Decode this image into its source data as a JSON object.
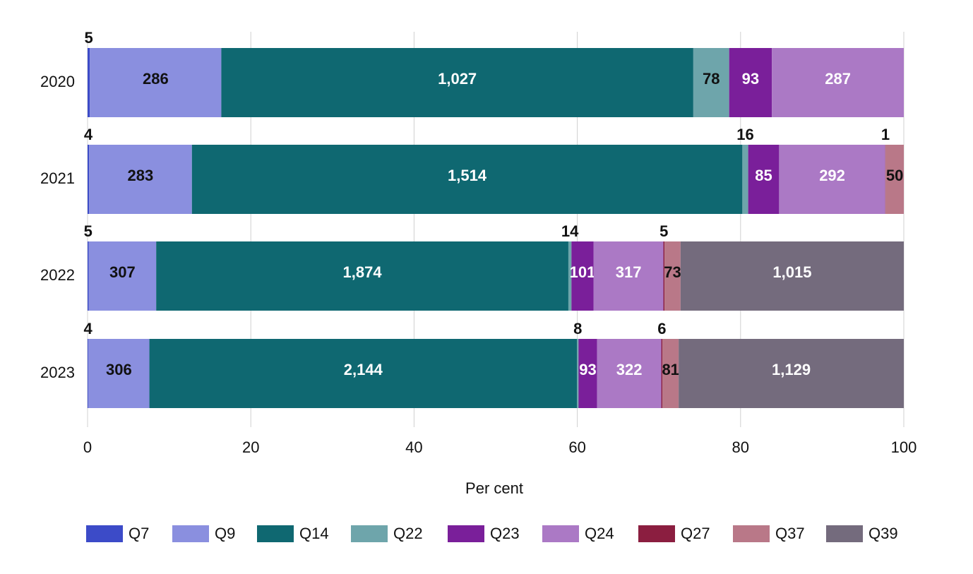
{
  "chart_data": {
    "type": "bar",
    "orientation": "horizontal",
    "stack": "percent",
    "x_label": "Per cent",
    "categories": [
      "2020",
      "2021",
      "2022",
      "2023"
    ],
    "xlim": [
      0,
      100
    ],
    "xticks": [
      0,
      20,
      40,
      60,
      80,
      100
    ],
    "grid": true,
    "legend": "bottom",
    "series": [
      {
        "name": "Q7",
        "color": "#3c4bc8",
        "values": [
          5,
          4,
          5,
          4
        ]
      },
      {
        "name": "Q9",
        "color": "#8a8fdf",
        "values": [
          286,
          283,
          307,
          306
        ]
      },
      {
        "name": "Q14",
        "color": "#0f6871",
        "values": [
          1027,
          1514,
          1874,
          2144
        ],
        "value_labels": [
          "1,027",
          "1,514",
          "1,874",
          "2,144"
        ]
      },
      {
        "name": "Q22",
        "color": "#6ea5ab",
        "values": [
          78,
          16,
          14,
          8
        ]
      },
      {
        "name": "Q23",
        "color": "#7a1f9a",
        "values": [
          93,
          85,
          101,
          93
        ]
      },
      {
        "name": "Q24",
        "color": "#ab79c5",
        "values": [
          287,
          292,
          317,
          322
        ]
      },
      {
        "name": "Q27",
        "color": "#8b1e40",
        "values": [
          null,
          1,
          5,
          6
        ]
      },
      {
        "name": "Q37",
        "color": "#b97888",
        "values": [
          null,
          50,
          73,
          81
        ]
      },
      {
        "name": "Q39",
        "color": "#746b7d",
        "values": [
          null,
          null,
          1015,
          1129
        ],
        "value_labels": [
          null,
          null,
          "1,015",
          "1,129"
        ]
      }
    ]
  }
}
